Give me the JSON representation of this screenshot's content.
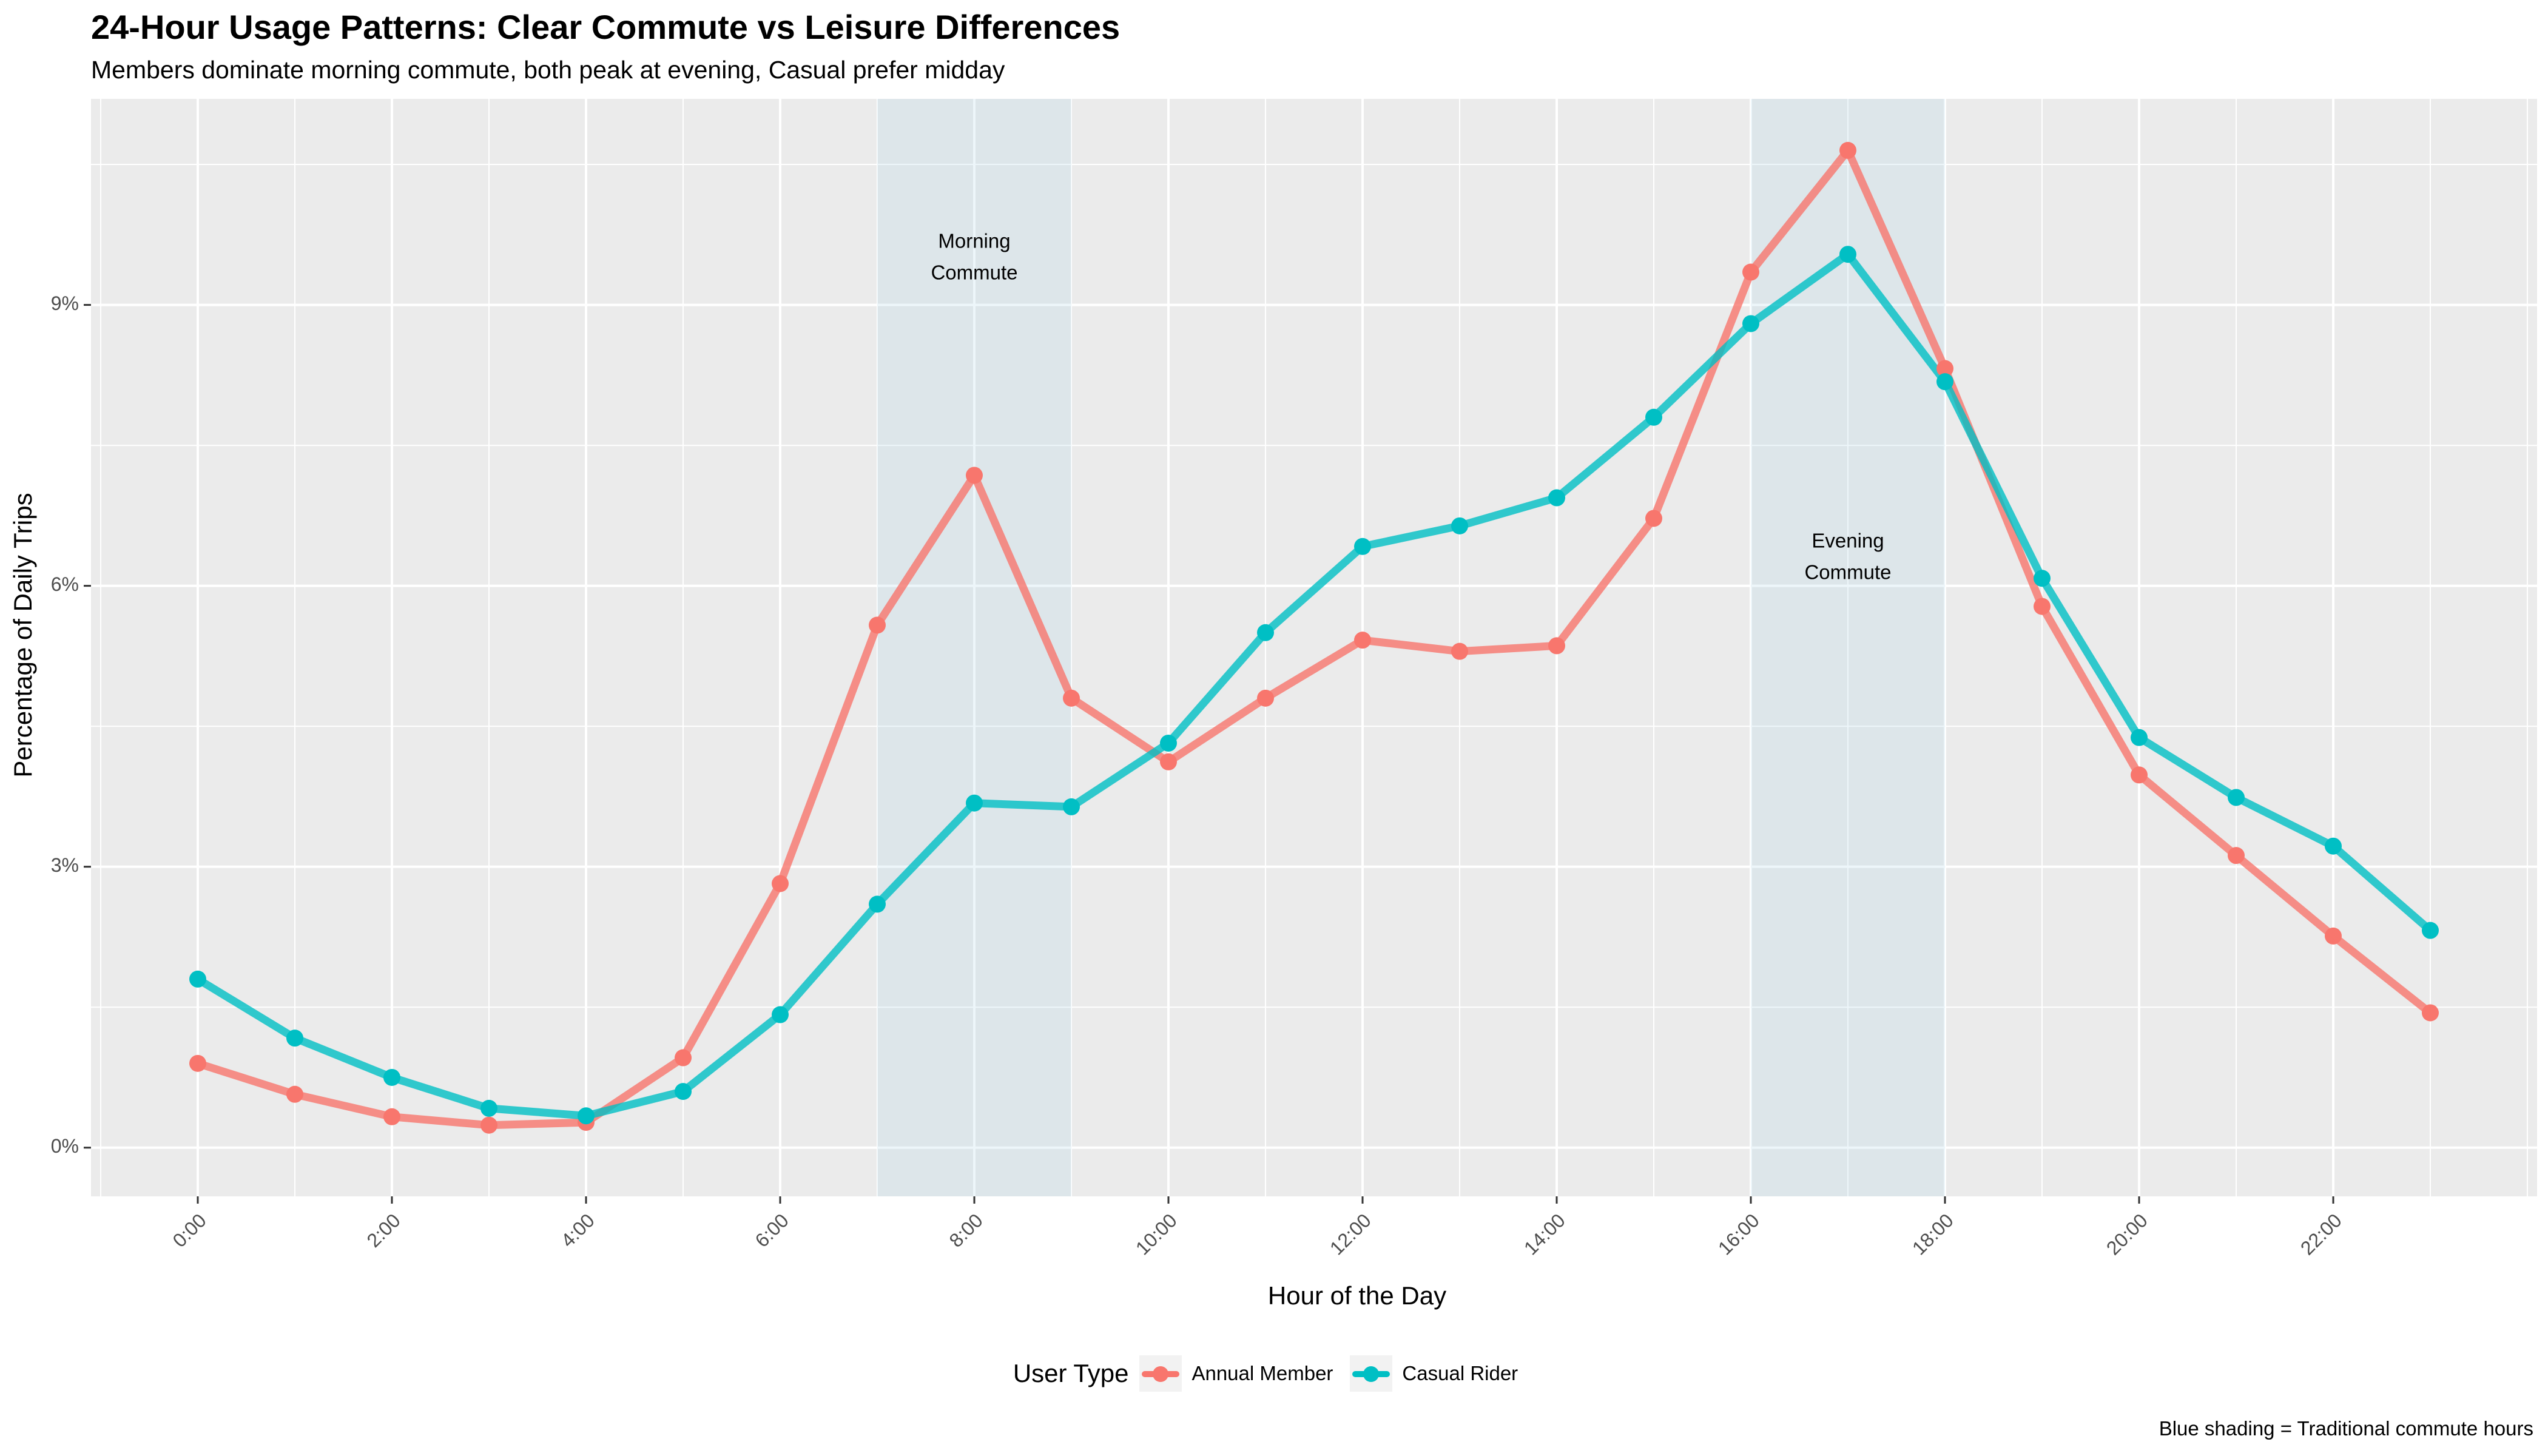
{
  "chart_data": {
    "type": "line",
    "title": "24-Hour Usage Patterns: Clear Commute vs Leisure Differences",
    "subtitle": "Members dominate morning commute, both peak at evening, Casual prefer midday",
    "xlabel": "Hour of the Day",
    "ylabel": "Percentage of Daily Trips",
    "x": [
      0,
      1,
      2,
      3,
      4,
      5,
      6,
      7,
      8,
      9,
      10,
      11,
      12,
      13,
      14,
      15,
      16,
      17,
      18,
      19,
      20,
      21,
      22,
      23
    ],
    "xlim": [
      -1.1,
      24.1
    ],
    "ylim": [
      -0.52,
      11.2
    ],
    "x_ticks": [
      0,
      2,
      4,
      6,
      8,
      10,
      12,
      14,
      16,
      18,
      20,
      22
    ],
    "x_tick_labels": [
      "0:00",
      "2:00",
      "4:00",
      "6:00",
      "8:00",
      "10:00",
      "12:00",
      "14:00",
      "16:00",
      "18:00",
      "20:00",
      "22:00"
    ],
    "y_ticks": [
      0,
      3,
      6,
      9
    ],
    "y_tick_labels": [
      "0%",
      "3%",
      "6%",
      "9%"
    ],
    "grid": true,
    "legend_position": "bottom",
    "legend_title": "User Type",
    "series": [
      {
        "name": "Annual Member",
        "color": "#F8766D",
        "values": [
          0.9,
          0.57,
          0.33,
          0.24,
          0.27,
          0.96,
          2.82,
          5.58,
          7.18,
          4.8,
          4.12,
          4.8,
          5.42,
          5.3,
          5.36,
          6.72,
          9.35,
          10.65,
          8.32,
          5.78,
          3.98,
          3.12,
          2.26,
          1.44
        ]
      },
      {
        "name": "Casual Rider",
        "color": "#00BFC4",
        "values": [
          1.8,
          1.17,
          0.75,
          0.42,
          0.34,
          0.6,
          1.42,
          2.6,
          3.68,
          3.64,
          4.32,
          5.5,
          6.42,
          6.64,
          6.94,
          7.8,
          8.8,
          9.54,
          8.18,
          6.08,
          4.38,
          3.74,
          3.22,
          2.32
        ]
      }
    ],
    "shaded_regions": [
      {
        "from": 7,
        "to": 9,
        "label_lines": [
          "Morning",
          "Commute"
        ],
        "label_x": 8,
        "label_y": 9.5
      },
      {
        "from": 16,
        "to": 18,
        "label_lines": [
          "Evening",
          "Commute"
        ],
        "label_x": 17,
        "label_y": 6.3
      }
    ],
    "caption": "Blue shading = Traditional commute hours"
  }
}
